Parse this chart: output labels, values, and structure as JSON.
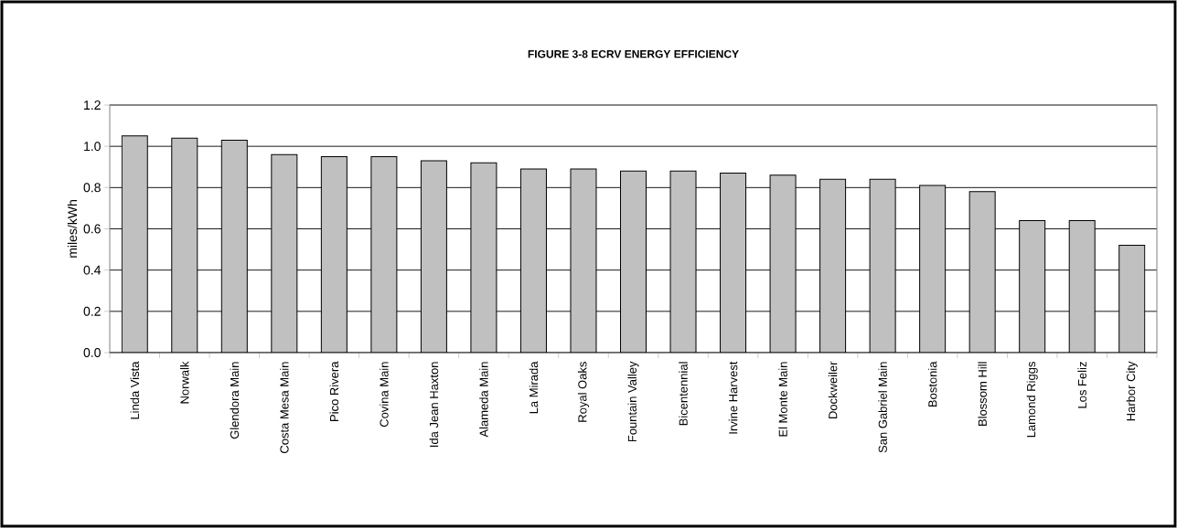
{
  "chart_data": {
    "type": "bar",
    "title": "FIGURE 3-8  ECRV ENERGY EFFICIENCY",
    "ylabel": "miles/kWh",
    "categories": [
      "Linda Vista",
      "Norwalk",
      "Glendora Main",
      "Costa Mesa Main",
      "Pico Rivera",
      "Covina Main",
      "Ida Jean Haxton",
      "Alameda Main",
      "La Mirada",
      "Royal Oaks",
      "Fountain Valley",
      "Bicentennial",
      "Irvine Harvest",
      "El Monte Main",
      "Dockweiler",
      "San Gabriel Main",
      "Bostonia",
      "Blossom Hill",
      "Lamond Riggs",
      "Los Feliz",
      "Harbor City"
    ],
    "values": [
      1.05,
      1.04,
      1.03,
      0.96,
      0.95,
      0.95,
      0.93,
      0.92,
      0.89,
      0.89,
      0.88,
      0.88,
      0.87,
      0.86,
      0.84,
      0.84,
      0.81,
      0.78,
      0.64,
      0.64,
      0.52
    ],
    "color": "#c0c0c0",
    "ylim": [
      0,
      1.2
    ],
    "yticks": [
      {
        "value": 0,
        "label": "0.0"
      },
      {
        "value": 0.2,
        "label": "0.2"
      },
      {
        "value": 0.4,
        "label": "0.4"
      },
      {
        "value": 0.6,
        "label": "0.6"
      },
      {
        "value": 0.8,
        "label": "0.8"
      },
      {
        "value": 1.0,
        "label": "1.0"
      },
      {
        "value": 1.2,
        "label": "1.2"
      }
    ],
    "grid": "y"
  }
}
